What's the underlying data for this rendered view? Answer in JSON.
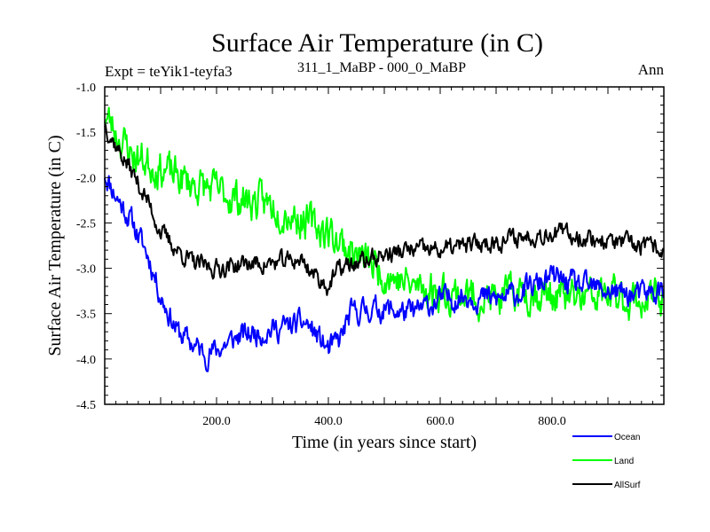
{
  "chart_data": {
    "type": "line",
    "title": "Surface Air Temperature (in C)",
    "subtitle_left": "Expt = teYik1-teyfa3",
    "subtitle_center": "311_1_MaBP - 000_0_MaBP",
    "subtitle_right": "Ann",
    "xlabel": "Time (in years since start)",
    "ylabel": "Surface Air Temperature (in C)",
    "xlim": [
      0,
      1000
    ],
    "ylim": [
      -4.5,
      -1.0
    ],
    "x_ticks": [
      {
        "value": 200,
        "label": "200.0"
      },
      {
        "value": 400,
        "label": "400.0"
      },
      {
        "value": 600,
        "label": "600.0"
      },
      {
        "value": 800,
        "label": "800.0"
      }
    ],
    "y_ticks": [
      {
        "value": -1.0,
        "label": "-1.0"
      },
      {
        "value": -1.5,
        "label": "-1.5"
      },
      {
        "value": -2.0,
        "label": "-2.0"
      },
      {
        "value": -2.5,
        "label": "-2.5"
      },
      {
        "value": -3.0,
        "label": "-3.0"
      },
      {
        "value": -3.5,
        "label": "-3.5"
      },
      {
        "value": -4.0,
        "label": "-4.0"
      },
      {
        "value": -4.5,
        "label": "-4.5"
      }
    ],
    "legend_position": "bottom-right",
    "series": [
      {
        "name": "Ocean",
        "color": "#0000ff",
        "noise": 0.11,
        "seed": 11,
        "x": [
          0,
          20,
          50,
          80,
          100,
          130,
          160,
          180,
          200,
          240,
          280,
          320,
          360,
          380,
          400,
          420,
          440,
          470,
          500,
          550,
          600,
          650,
          700,
          750,
          800,
          850,
          900,
          950,
          1000
        ],
        "values": [
          -1.95,
          -2.2,
          -2.5,
          -2.9,
          -3.3,
          -3.7,
          -3.85,
          -3.95,
          -3.9,
          -3.75,
          -3.7,
          -3.65,
          -3.6,
          -3.75,
          -3.9,
          -3.8,
          -3.5,
          -3.45,
          -3.45,
          -3.5,
          -3.35,
          -3.3,
          -3.35,
          -3.25,
          -3.1,
          -3.2,
          -3.25,
          -3.3,
          -3.25
        ]
      },
      {
        "name": "Land",
        "color": "#00ff00",
        "noise": 0.17,
        "seed": 23,
        "x": [
          0,
          20,
          50,
          100,
          150,
          200,
          250,
          300,
          350,
          400,
          450,
          500,
          550,
          600,
          650,
          700,
          750,
          800,
          850,
          900,
          950,
          1000
        ],
        "values": [
          -1.3,
          -1.5,
          -1.75,
          -1.9,
          -2.05,
          -2.15,
          -2.25,
          -2.3,
          -2.45,
          -2.6,
          -2.85,
          -3.05,
          -3.2,
          -3.25,
          -3.3,
          -3.35,
          -3.25,
          -3.3,
          -3.35,
          -3.3,
          -3.35,
          -3.35
        ]
      },
      {
        "name": "AllSurf",
        "color": "#000000",
        "noise": 0.085,
        "seed": 37,
        "x": [
          0,
          20,
          50,
          80,
          100,
          130,
          160,
          200,
          250,
          300,
          350,
          380,
          400,
          420,
          450,
          500,
          550,
          600,
          650,
          700,
          750,
          800,
          850,
          900,
          950,
          1000
        ],
        "values": [
          -1.4,
          -1.65,
          -1.95,
          -2.3,
          -2.6,
          -2.8,
          -2.95,
          -3.0,
          -2.95,
          -2.95,
          -2.9,
          -3.1,
          -3.2,
          -3.0,
          -2.95,
          -2.85,
          -2.8,
          -2.8,
          -2.75,
          -2.7,
          -2.65,
          -2.6,
          -2.65,
          -2.7,
          -2.75,
          -2.8
        ]
      }
    ]
  }
}
